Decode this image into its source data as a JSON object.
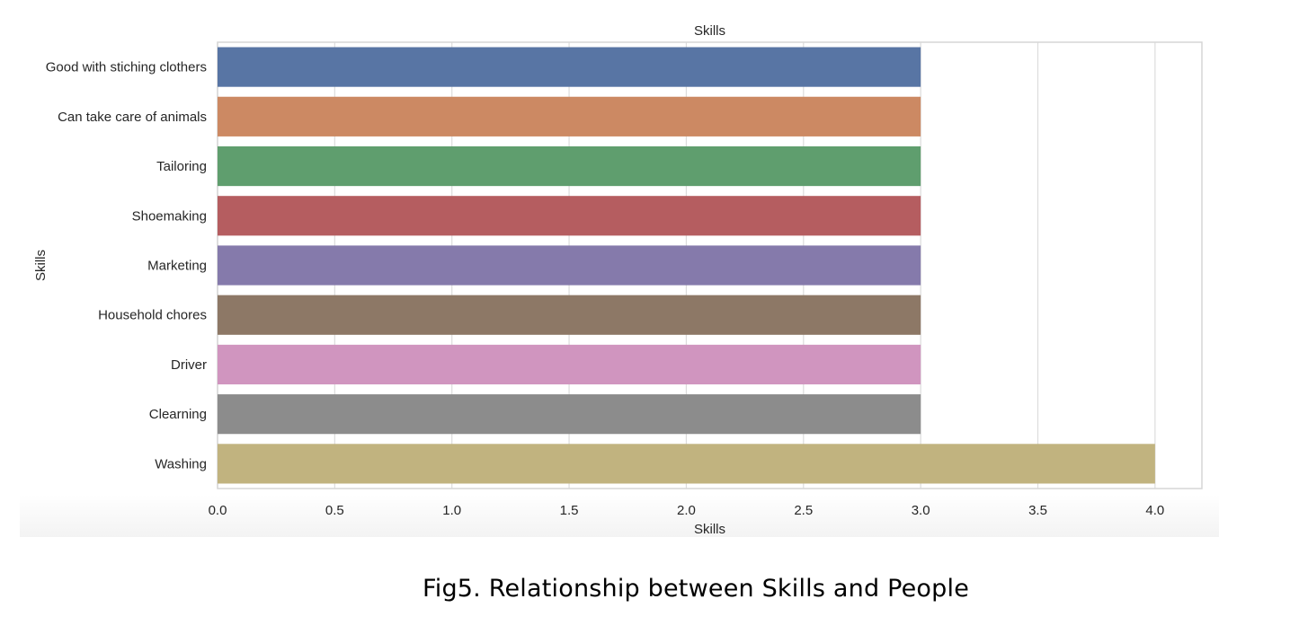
{
  "caption": "Fig5. Relationship between Skills and People",
  "chart_data": {
    "type": "bar",
    "orientation": "horizontal",
    "title": "Skills",
    "xlabel": "Skills",
    "ylabel": "Skills",
    "categories": [
      "Good with stiching clothers",
      "Can take care of animals",
      "Tailoring",
      "Shoemaking",
      "Marketing",
      "Household chores",
      "Driver",
      "Clearning",
      "Washing"
    ],
    "values": [
      3,
      3,
      3,
      3,
      3,
      3,
      3,
      3,
      4
    ],
    "colors": [
      "#5875a4",
      "#cc8963",
      "#5f9e6e",
      "#b55d60",
      "#857aab",
      "#8d7866",
      "#d095bf",
      "#8c8c8c",
      "#c1b37f"
    ],
    "xlim": [
      0,
      4.2
    ],
    "xticks": [
      0.0,
      0.5,
      1.0,
      1.5,
      2.0,
      2.5,
      3.0,
      3.5,
      4.0
    ],
    "xtick_labels": [
      "0.0",
      "0.5",
      "1.0",
      "1.5",
      "2.0",
      "2.5",
      "3.0",
      "3.5",
      "4.0"
    ],
    "grid": true,
    "legend": "none"
  }
}
